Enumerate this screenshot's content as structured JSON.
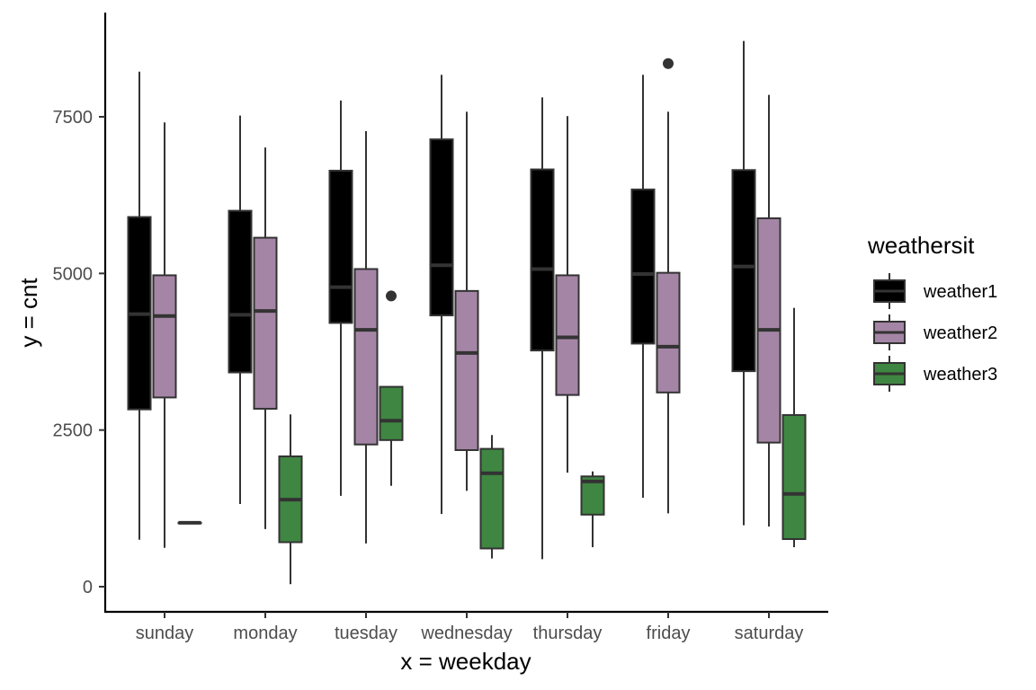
{
  "chart_data": {
    "type": "boxplot",
    "xlabel": "x = weekday",
    "ylabel": "y = cnt",
    "ylim": [
      -400,
      9200
    ],
    "y_ticks": [
      0,
      2500,
      5000,
      7500
    ],
    "grid": false,
    "legend": {
      "title": "weathersit",
      "position": "right"
    },
    "categories": [
      "sunday",
      "monday",
      "tuesday",
      "wednesday",
      "thursday",
      "friday",
      "saturday"
    ],
    "series": [
      {
        "name": "weather1",
        "color": "#000000",
        "boxes": [
          {
            "min": 750,
            "q1": 2830,
            "median": 4350,
            "q3": 5900,
            "max": 8220,
            "outliers": []
          },
          {
            "min": 1320,
            "q1": 3420,
            "median": 4340,
            "q3": 6000,
            "max": 7520,
            "outliers": []
          },
          {
            "min": 1450,
            "q1": 4210,
            "median": 4780,
            "q3": 6640,
            "max": 7760,
            "outliers": []
          },
          {
            "min": 1160,
            "q1": 4330,
            "median": 5130,
            "q3": 7140,
            "max": 8170,
            "outliers": []
          },
          {
            "min": 440,
            "q1": 3770,
            "median": 5070,
            "q3": 6660,
            "max": 7810,
            "outliers": []
          },
          {
            "min": 1420,
            "q1": 3880,
            "median": 4990,
            "q3": 6340,
            "max": 8170,
            "outliers": []
          },
          {
            "min": 980,
            "q1": 3440,
            "median": 5110,
            "q3": 6650,
            "max": 8710,
            "outliers": []
          }
        ]
      },
      {
        "name": "weather2",
        "color": "#a585a6",
        "boxes": [
          {
            "min": 620,
            "q1": 3020,
            "median": 4320,
            "q3": 4970,
            "max": 7410,
            "outliers": []
          },
          {
            "min": 920,
            "q1": 2840,
            "median": 4400,
            "q3": 5570,
            "max": 7010,
            "outliers": []
          },
          {
            "min": 690,
            "q1": 2270,
            "median": 4100,
            "q3": 5070,
            "max": 7270,
            "outliers": []
          },
          {
            "min": 1530,
            "q1": 2180,
            "median": 3730,
            "q3": 4720,
            "max": 7580,
            "outliers": []
          },
          {
            "min": 1820,
            "q1": 3060,
            "median": 3980,
            "q3": 4970,
            "max": 7510,
            "outliers": []
          },
          {
            "min": 1170,
            "q1": 3100,
            "median": 3830,
            "q3": 5010,
            "max": 7580,
            "outliers": [
              8350
            ]
          },
          {
            "min": 960,
            "q1": 2300,
            "median": 4100,
            "q3": 5880,
            "max": 7850,
            "outliers": []
          }
        ]
      },
      {
        "name": "weather3",
        "color": "#3f8642",
        "boxes": [
          {
            "min": 1020,
            "q1": 1020,
            "median": 1020,
            "q3": 1020,
            "max": 1020,
            "outliers": []
          },
          {
            "min": 40,
            "q1": 710,
            "median": 1390,
            "q3": 2080,
            "max": 2750,
            "outliers": []
          },
          {
            "min": 1610,
            "q1": 2340,
            "median": 2650,
            "q3": 3190,
            "max": 3190,
            "outliers": [
              4640
            ]
          },
          {
            "min": 450,
            "q1": 610,
            "median": 1810,
            "q3": 2200,
            "max": 2420,
            "outliers": []
          },
          {
            "min": 630,
            "q1": 1150,
            "median": 1680,
            "q3": 1760,
            "max": 1840,
            "outliers": []
          },
          null,
          {
            "min": 630,
            "q1": 760,
            "median": 1480,
            "q3": 2740,
            "max": 4450,
            "outliers": []
          }
        ]
      }
    ]
  }
}
